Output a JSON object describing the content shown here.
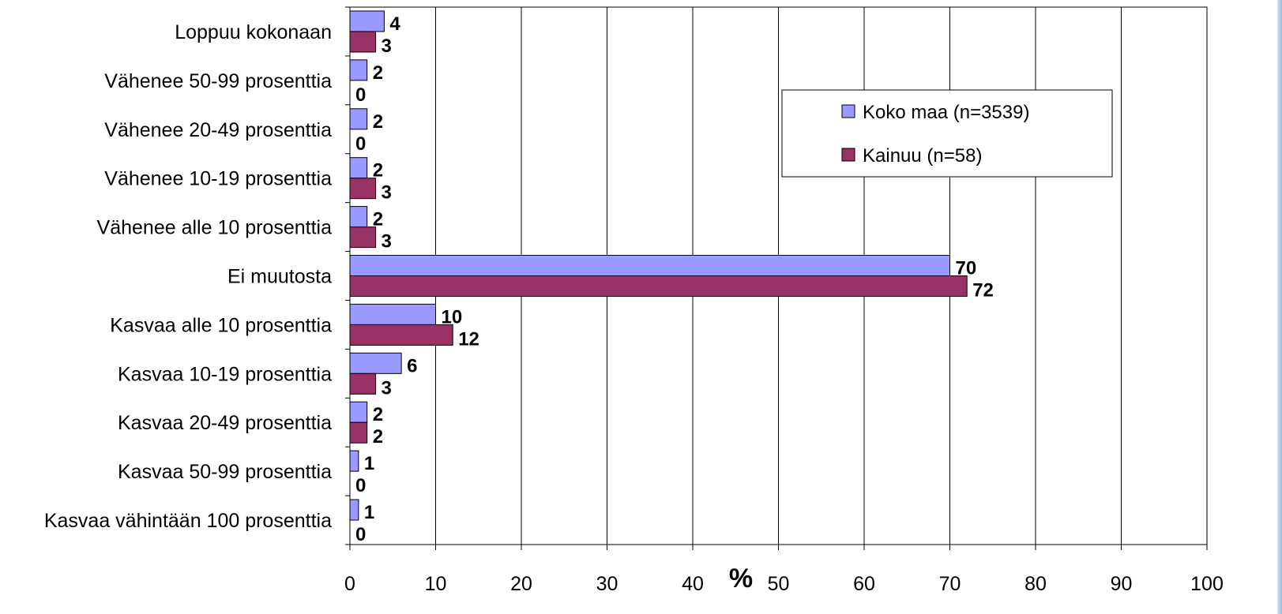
{
  "chart_data": {
    "type": "bar",
    "orientation": "horizontal",
    "categories": [
      "Loppuu kokonaan",
      "Vähenee 50-99 prosenttia",
      "Vähenee 20-49 prosenttia",
      "Vähenee 10-19 prosenttia",
      "Vähenee alle 10 prosenttia",
      "Ei muutosta",
      "Kasvaa alle 10 prosenttia",
      "Kasvaa 10-19 prosenttia",
      "Kasvaa 20-49 prosenttia",
      "Kasvaa 50-99 prosenttia",
      "Kasvaa vähintään 100 prosenttia"
    ],
    "series": [
      {
        "name": "Koko maa (n=3539)",
        "color": "#9999ff",
        "values": [
          4,
          2,
          2,
          2,
          2,
          70,
          10,
          6,
          2,
          1,
          1
        ]
      },
      {
        "name": "Kainuu (n=58)",
        "color": "#993366",
        "values": [
          3,
          0,
          0,
          3,
          3,
          72,
          12,
          3,
          2,
          0,
          0
        ]
      }
    ],
    "xlabel": "%",
    "xlim": [
      0,
      100
    ],
    "xticks": [
      0,
      10,
      20,
      30,
      40,
      50,
      60,
      70,
      80,
      90,
      100
    ],
    "grid": "vertical",
    "legend": "top-right",
    "data_labels": true
  }
}
